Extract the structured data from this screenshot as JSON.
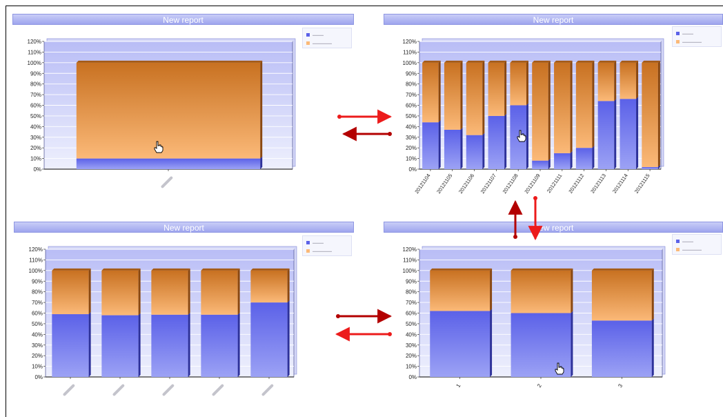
{
  "colors": {
    "filled_top": "#5b61e8",
    "filled_bottom": "#9ca2f5",
    "rest_top": "#c87121",
    "rest_bottom": "#fbb978",
    "plot_bg": "#eef0fd",
    "arrow_dark": "#b30000",
    "arrow_light": "#ec1b1b"
  },
  "chart_data": [
    {
      "id": "top-left",
      "type": "bar",
      "stacked": true,
      "title": "New report",
      "ylim": [
        0,
        120
      ],
      "yticks": [
        "0%",
        "10%",
        "20%",
        "30%",
        "40%",
        "50%",
        "60%",
        "70%",
        "80%",
        "90%",
        "100%",
        "110%",
        "120%"
      ],
      "categories": [
        ""
      ],
      "series": [
        {
          "values": [
            10
          ]
        },
        {
          "values": [
            90
          ]
        }
      ],
      "legend_position": "top-right",
      "cursor": "pointer-hand-icon"
    },
    {
      "id": "top-right",
      "type": "bar",
      "stacked": true,
      "title": "New report",
      "ylim": [
        0,
        120
      ],
      "yticks": [
        "0%",
        "10%",
        "20%",
        "30%",
        "40%",
        "50%",
        "60%",
        "70%",
        "80%",
        "90%",
        "100%",
        "110%",
        "120%"
      ],
      "categories": [
        "20121104",
        "20121105",
        "20121106",
        "20121107",
        "20121108",
        "20121109",
        "20121111",
        "20121112",
        "20121113",
        "20121114",
        "20121115"
      ],
      "series": [
        {
          "values": [
            44,
            37,
            32,
            50,
            60,
            8,
            15,
            20,
            64,
            66,
            2
          ]
        },
        {
          "values": [
            56,
            63,
            68,
            50,
            40,
            92,
            85,
            80,
            36,
            34,
            98
          ]
        }
      ],
      "legend_position": "top-right",
      "cursor": "pointer-hand-icon"
    },
    {
      "id": "bottom-left",
      "type": "bar",
      "stacked": true,
      "title": "New report",
      "ylim": [
        0,
        120
      ],
      "yticks": [
        "0%",
        "10%",
        "20%",
        "30%",
        "40%",
        "50%",
        "60%",
        "70%",
        "80%",
        "90%",
        "100%",
        "110%",
        "120%"
      ],
      "categories": [
        "",
        "",
        "",
        "",
        ""
      ],
      "series": [
        {
          "values": [
            59,
            58,
            58.5,
            58.5,
            70
          ]
        },
        {
          "values": [
            41,
            42,
            41.5,
            41.5,
            30
          ]
        }
      ],
      "legend_position": "top-right"
    },
    {
      "id": "bottom-right",
      "type": "bar",
      "stacked": true,
      "title": "New report",
      "ylim": [
        0,
        120
      ],
      "yticks": [
        "0%",
        "10%",
        "20%",
        "30%",
        "40%",
        "50%",
        "60%",
        "70%",
        "80%",
        "90%",
        "100%",
        "110%",
        "120%"
      ],
      "categories": [
        "1",
        "2",
        "3"
      ],
      "series": [
        {
          "values": [
            62,
            60,
            53
          ]
        },
        {
          "values": [
            38,
            40,
            47
          ]
        }
      ],
      "legend_position": "top-right",
      "cursor": "pointer-hand-icon"
    }
  ]
}
